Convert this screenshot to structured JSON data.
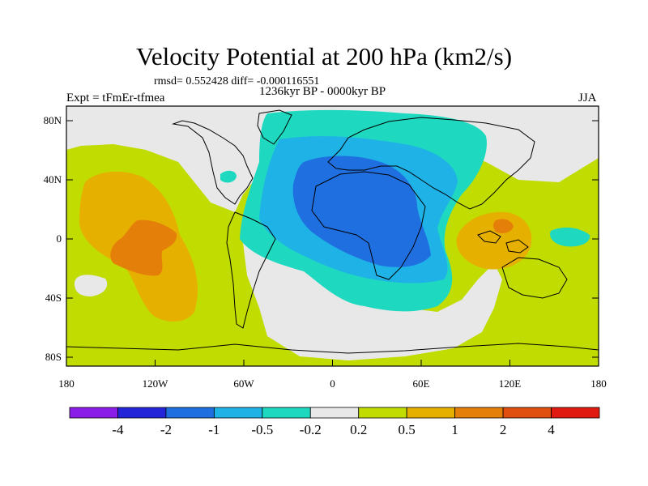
{
  "title": "Velocity Potential at 200 hPa (km2/s)",
  "stats": "rmsd= 0.552428 diff= -0.000116551",
  "experiment": "Expt = tFmEr-tfmea",
  "period": "1236kyr BP - 0000kyr BP",
  "season": "JJA",
  "map": {
    "lat_ticks": [
      "80N",
      "40N",
      "0",
      "40S",
      "80S"
    ],
    "lon_ticks": [
      "180",
      "120W",
      "60W",
      "0",
      "60E",
      "120E",
      "180"
    ]
  },
  "colorbar": {
    "colors": [
      "#8a1ee8",
      "#2424d8",
      "#1f6fe0",
      "#1fb2e6",
      "#1ed9c0",
      "#e8e8e8",
      "#c0dc00",
      "#e6b000",
      "#e47f0a",
      "#e04e10",
      "#e01a10"
    ],
    "labels": [
      "-4",
      "-2",
      "-1",
      "-0.5",
      "-0.2",
      "0.2",
      "0.5",
      "1",
      "2",
      "4"
    ]
  }
}
